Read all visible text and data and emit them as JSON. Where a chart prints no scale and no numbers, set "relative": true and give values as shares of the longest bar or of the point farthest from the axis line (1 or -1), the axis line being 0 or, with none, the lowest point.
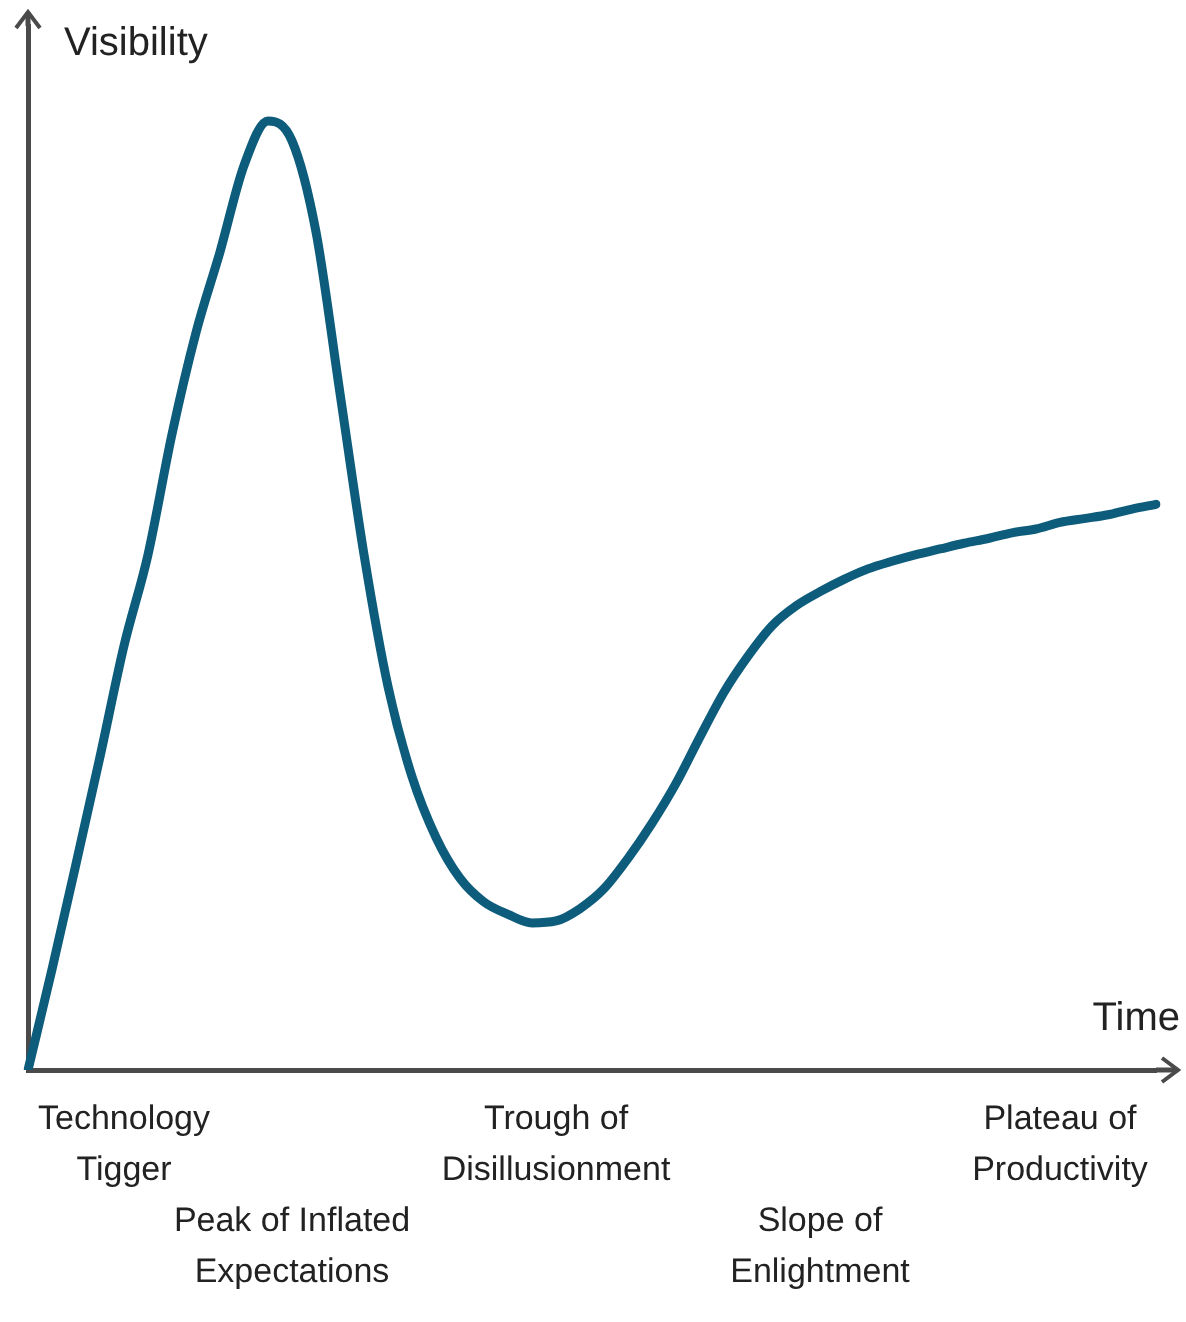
{
  "chart_data": {
    "type": "line",
    "relative": true,
    "xlabel": "Time",
    "ylabel": "Visibility",
    "color": "#0e5c7c",
    "marker": "none",
    "grid": false,
    "legend": false,
    "categories": [
      null,
      null,
      null,
      null,
      "Technology Tigger",
      null,
      null,
      null,
      null,
      null,
      null,
      "Peak of Inflated Expectations",
      null,
      null,
      null,
      null,
      null,
      null,
      null,
      null,
      null,
      null,
      "Trough of Disillusionment",
      null,
      null,
      null,
      null,
      null,
      null,
      null,
      null,
      null,
      null,
      "Slope of Enlightment",
      null,
      null,
      null,
      null,
      null,
      null,
      null,
      null,
      null,
      "Plateau of Productivity",
      null,
      null,
      null,
      null
    ],
    "values": [
      0,
      0.106,
      0.217,
      0.33,
      0.447,
      0.543,
      0.67,
      0.777,
      0.862,
      0.953,
      1,
      0.979,
      0.883,
      0.713,
      0.543,
      0.404,
      0.309,
      0.245,
      0.202,
      0.177,
      0.164,
      0.155,
      0.157,
      0.17,
      0.191,
      0.223,
      0.26,
      0.302,
      0.351,
      0.398,
      0.436,
      0.468,
      0.489,
      0.504,
      0.517,
      0.528,
      0.536,
      0.543,
      0.549,
      0.555,
      0.56,
      0.566,
      0.57,
      0.577,
      0.581,
      0.585,
      0.591,
      0.596
    ]
  }
}
